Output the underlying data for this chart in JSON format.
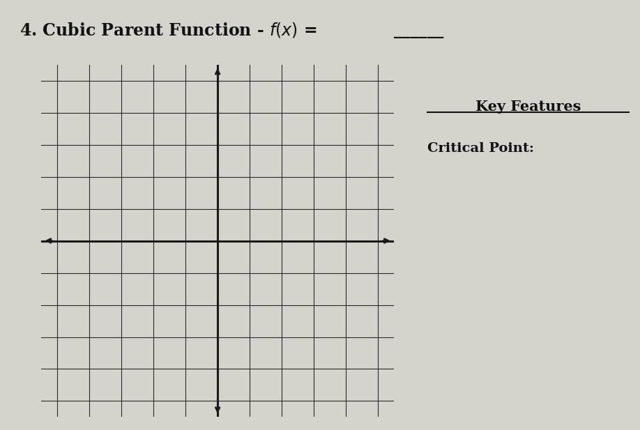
{
  "title_text": "4. Cubic Parent Function - ",
  "title_fx": "$f(x)$ = ",
  "underline_blank": "______",
  "key_features_title": "Key Features",
  "critical_point_label": "Critical Point:",
  "grid_rows": 10,
  "grid_cols": 10,
  "bg_color": "#d4d3cc",
  "grid_color": "#2a2a2a",
  "axis_color": "#1a1a1a",
  "text_color": "#111111",
  "title_fontsize": 17,
  "key_fontsize": 15,
  "critical_fontsize": 14
}
